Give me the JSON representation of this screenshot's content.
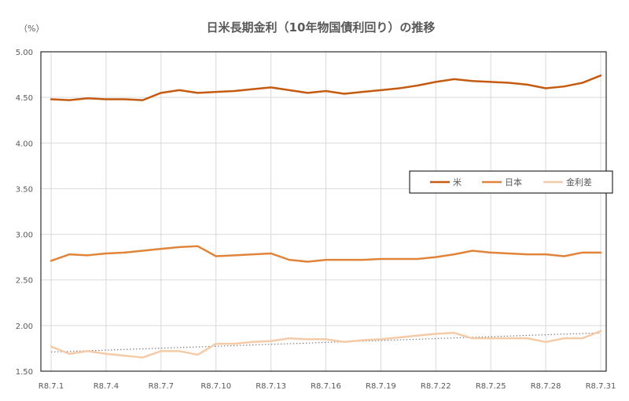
{
  "chart_data": {
    "type": "line",
    "title": "日米長期金利（10年物国債利回り）の推移",
    "unit_label": "（%）",
    "xlabel": "",
    "ylabel": "",
    "ylim": [
      1.5,
      5.0
    ],
    "yticks": [
      "5.00",
      "4.50",
      "4.00",
      "3.50",
      "3.00",
      "2.50",
      "2.00",
      "1.50"
    ],
    "ytick_values": [
      5.0,
      4.5,
      4.0,
      3.5,
      3.0,
      2.5,
      2.0,
      1.5
    ],
    "x_tick_labels": [
      "R8.7.1",
      "R8.7.4",
      "R8.7.7",
      "R8.7.10",
      "R8.7.13",
      "R8.7.16",
      "R8.7.19",
      "R8.7.22",
      "R8.7.25",
      "R8.7.28",
      "R8.7.31"
    ],
    "x": [
      1,
      2,
      3,
      4,
      5,
      6,
      7,
      8,
      9,
      10,
      11,
      12,
      13,
      14,
      15,
      16,
      17,
      18,
      19,
      20,
      21,
      22,
      23,
      24,
      25,
      26,
      27,
      28,
      29,
      30,
      31
    ],
    "grid": true,
    "legend_position": "right",
    "series": [
      {
        "name": "米",
        "color": "#c55a11",
        "values": [
          4.48,
          4.47,
          4.49,
          4.48,
          4.48,
          4.47,
          4.55,
          4.58,
          4.55,
          4.56,
          4.57,
          4.59,
          4.61,
          4.58,
          4.55,
          4.57,
          4.54,
          4.56,
          4.58,
          4.6,
          4.63,
          4.67,
          4.7,
          4.68,
          4.67,
          4.66,
          4.64,
          4.6,
          4.62,
          4.66,
          4.74
        ]
      },
      {
        "name": "日本",
        "color": "#e0843a",
        "values": [
          2.71,
          2.78,
          2.77,
          2.79,
          2.8,
          2.82,
          2.84,
          2.86,
          2.87,
          2.76,
          2.77,
          2.78,
          2.79,
          2.72,
          2.7,
          2.72,
          2.72,
          2.72,
          2.73,
          2.73,
          2.73,
          2.75,
          2.78,
          2.82,
          2.8,
          2.79,
          2.78,
          2.78,
          2.76,
          2.8,
          2.8
        ]
      },
      {
        "name": "金利差",
        "color": "#f4cba6",
        "values": [
          1.77,
          1.69,
          1.72,
          1.69,
          1.67,
          1.65,
          1.72,
          1.72,
          1.68,
          1.8,
          1.8,
          1.82,
          1.83,
          1.86,
          1.85,
          1.85,
          1.82,
          1.84,
          1.85,
          1.87,
          1.89,
          1.91,
          1.92,
          1.86,
          1.86,
          1.86,
          1.86,
          1.82,
          1.86,
          1.86,
          1.94
        ]
      }
    ],
    "trendline": {
      "series": "金利差",
      "style": "dotted",
      "color": "#7f7f7f",
      "start": 1.71,
      "end": 1.92
    }
  }
}
